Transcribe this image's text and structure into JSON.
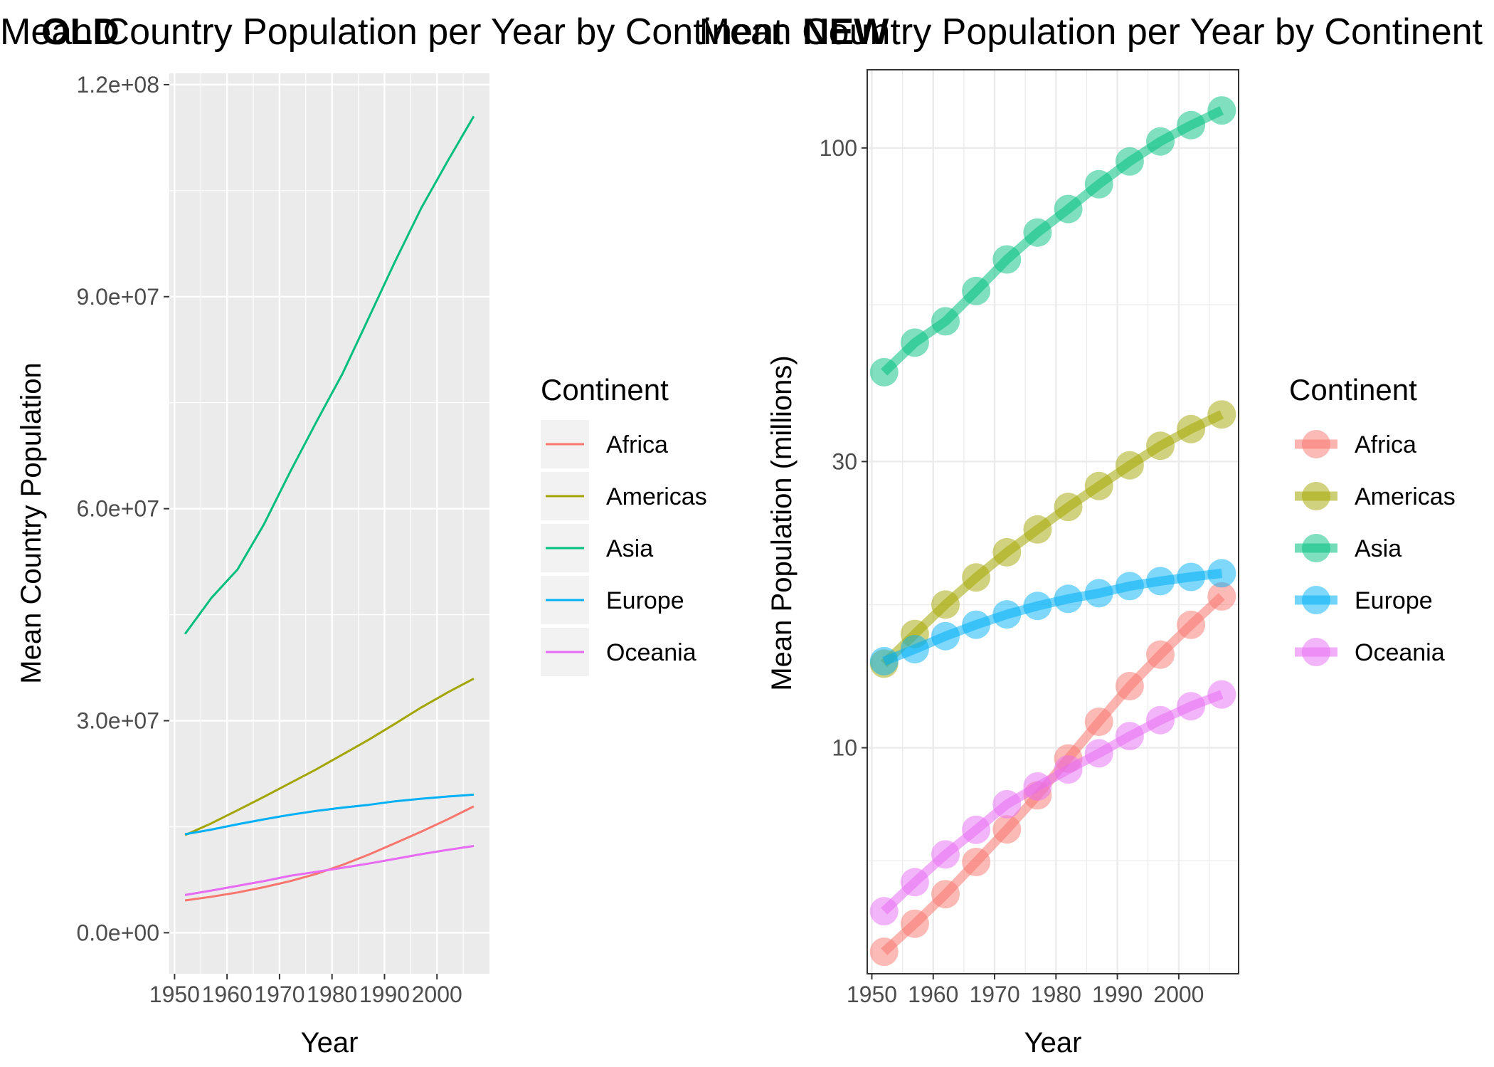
{
  "chart_data": [
    {
      "tag": "OLD",
      "type": "line",
      "title": "Mean Country Population per Year by Continent",
      "xlabel": "Year",
      "ylabel": "Mean Country Population",
      "xlim": [
        1950,
        2010
      ],
      "ylim": [
        0,
        120000000
      ],
      "x_ticks": [
        1950,
        1960,
        1970,
        1980,
        1990,
        2000
      ],
      "y_ticks": [
        0,
        30000000,
        60000000,
        90000000,
        120000000
      ],
      "y_tick_labels": [
        "0.0e+00",
        "3.0e+07",
        "6.0e+07",
        "9.0e+07",
        "1.2e+08"
      ],
      "grid": true,
      "legend_placement": "right",
      "legend_title": "Continent",
      "x": [
        1952,
        1957,
        1962,
        1967,
        1972,
        1977,
        1982,
        1987,
        1992,
        1997,
        2002,
        2007
      ],
      "series": [
        {
          "name": "Africa",
          "color": "#F8766D",
          "values": [
            4570010,
            5093033,
            5702247,
            6447875,
            7305376,
            8328097,
            9602857,
            11054502,
            12674645,
            14304480,
            16033152,
            17875763
          ]
        },
        {
          "name": "Americas",
          "color": "#A3A500",
          "values": [
            13806098,
            15478157,
            17330810,
            19229865,
            21175368,
            23122708,
            25211637,
            27310159,
            29570964,
            31876016,
            33990910,
            35954847
          ]
        },
        {
          "name": "Asia",
          "color": "#00BF7D",
          "values": [
            42283556,
            47356988,
            51404763,
            57747361,
            65180977,
            72257987,
            79095018,
            87006690,
            94948248,
            102523803,
            109145521,
            115513752
          ]
        },
        {
          "name": "Europe",
          "color": "#00B0F6",
          "values": [
            13937362,
            14596345,
            15345172,
            16039299,
            16687835,
            17238818,
            17708897,
            18103139,
            18604760,
            18964805,
            19274129,
            19536618
          ]
        },
        {
          "name": "Oceania",
          "color": "#E76BF3",
          "values": [
            5343003,
            5970988,
            6641759,
            7300207,
            8053050,
            8619500,
            9197425,
            9787208,
            10459826,
            11120715,
            11727414,
            12274974
          ]
        }
      ]
    },
    {
      "tag": "NEW",
      "type": "line",
      "title": "Mean Country Population per Year by Continent",
      "xlabel": "Year",
      "ylabel": "Mean Population (millions)",
      "y_scale": "log10",
      "xlim": [
        1950,
        2010
      ],
      "ylim": [
        4.2,
        135
      ],
      "x_ticks": [
        1950,
        1960,
        1970,
        1980,
        1990,
        2000
      ],
      "y_ticks": [
        10,
        30,
        100
      ],
      "y_tick_labels": [
        "10",
        "30",
        "100"
      ],
      "grid": true,
      "legend_placement": "right",
      "legend_title": "Continent",
      "x": [
        1952,
        1957,
        1962,
        1967,
        1972,
        1977,
        1982,
        1987,
        1992,
        1997,
        2002,
        2007
      ],
      "series": [
        {
          "name": "Africa",
          "color": "#F8766D",
          "values": [
            4.57,
            5.09,
            5.7,
            6.45,
            7.31,
            8.33,
            9.6,
            11.05,
            12.67,
            14.3,
            16.03,
            17.88
          ]
        },
        {
          "name": "Americas",
          "color": "#A3A500",
          "values": [
            13.81,
            15.48,
            17.33,
            19.23,
            21.18,
            23.12,
            25.21,
            27.31,
            29.57,
            31.88,
            33.99,
            35.95
          ]
        },
        {
          "name": "Asia",
          "color": "#00BF7D",
          "values": [
            42.28,
            47.36,
            51.4,
            57.75,
            65.18,
            72.26,
            79.1,
            87.01,
            94.95,
            102.52,
            109.15,
            115.51
          ]
        },
        {
          "name": "Europe",
          "color": "#00B0F6",
          "values": [
            13.94,
            14.6,
            15.35,
            16.04,
            16.69,
            17.24,
            17.71,
            18.1,
            18.6,
            18.96,
            19.27,
            19.54
          ]
        },
        {
          "name": "Oceania",
          "color": "#E76BF3",
          "values": [
            5.34,
            5.97,
            6.64,
            7.3,
            8.05,
            8.62,
            9.2,
            9.79,
            10.46,
            11.12,
            11.73,
            12.27
          ]
        }
      ]
    }
  ]
}
